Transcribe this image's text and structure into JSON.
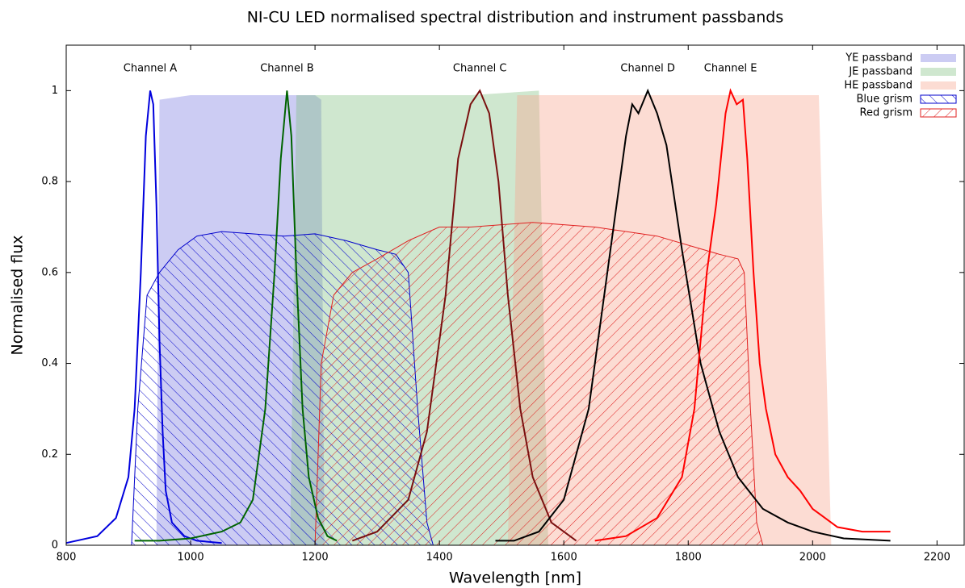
{
  "chart_data": {
    "type": "line",
    "title": "NI-CU LED normalised spectral distribution and instrument passbands",
    "x_label": "Wavelength [nm]",
    "y_label": "Normalised flux",
    "xlim": [
      800,
      2245
    ],
    "ylim": [
      0,
      1.1
    ],
    "xticks": [
      800,
      1000,
      1200,
      1400,
      1600,
      1800,
      2000,
      2200
    ],
    "yticks": [
      0,
      0.2,
      0.4,
      0.6,
      0.8,
      1
    ],
    "legend": "upper right",
    "series": [
      {
        "name": "YE passband",
        "style": "area",
        "color": "#8080e0",
        "opacity": 0.4,
        "x": [
          945,
          950,
          1000,
          1100,
          1200,
          1210,
          1215
        ],
        "values": [
          0,
          0.98,
          0.99,
          0.99,
          0.99,
          0.98,
          0
        ]
      },
      {
        "name": "JE passband",
        "style": "area",
        "color": "#80c080",
        "opacity": 0.38,
        "x": [
          1160,
          1170,
          1300,
          1450,
          1560,
          1575
        ],
        "values": [
          0,
          0.99,
          0.99,
          0.99,
          1.0,
          0
        ]
      },
      {
        "name": "HE passband",
        "style": "area",
        "color": "#f8a890",
        "opacity": 0.4,
        "x": [
          1510,
          1525,
          1700,
          1900,
          2010,
          2030
        ],
        "values": [
          0,
          0.99,
          0.99,
          0.99,
          0.99,
          0
        ]
      },
      {
        "name": "Blue grism",
        "style": "hatch",
        "hatch": "back",
        "color": "#0000cc",
        "x": [
          905,
          915,
          930,
          950,
          980,
          1010,
          1050,
          1150,
          1200,
          1250,
          1300,
          1330,
          1350,
          1365,
          1380,
          1390
        ],
        "values": [
          0,
          0.3,
          0.55,
          0.6,
          0.65,
          0.68,
          0.69,
          0.68,
          0.685,
          0.67,
          0.65,
          0.64,
          0.6,
          0.3,
          0.05,
          0
        ]
      },
      {
        "name": "Red grism",
        "style": "hatch",
        "hatch": "forward",
        "color": "#e02020",
        "x": [
          1200,
          1210,
          1230,
          1260,
          1300,
          1350,
          1400,
          1450,
          1550,
          1650,
          1750,
          1850,
          1880,
          1890,
          1900,
          1910,
          1920
        ],
        "values": [
          0,
          0.4,
          0.55,
          0.6,
          0.63,
          0.67,
          0.7,
          0.7,
          0.71,
          0.7,
          0.68,
          0.64,
          0.63,
          0.6,
          0.3,
          0.05,
          0
        ]
      },
      {
        "name": "Channel A",
        "style": "line",
        "color": "#0000dd",
        "x": [
          800,
          850,
          880,
          900,
          910,
          920,
          928,
          935,
          940,
          945,
          950,
          955,
          960,
          970,
          990,
          1010,
          1050
        ],
        "values": [
          0.005,
          0.02,
          0.06,
          0.15,
          0.3,
          0.6,
          0.9,
          1.0,
          0.97,
          0.75,
          0.45,
          0.25,
          0.12,
          0.05,
          0.02,
          0.01,
          0.005
        ]
      },
      {
        "name": "Channel B",
        "style": "line",
        "color": "#006400",
        "x": [
          910,
          950,
          1000,
          1050,
          1080,
          1100,
          1120,
          1135,
          1145,
          1155,
          1162,
          1170,
          1180,
          1190,
          1205,
          1220,
          1235
        ],
        "values": [
          0.01,
          0.01,
          0.015,
          0.03,
          0.05,
          0.1,
          0.3,
          0.6,
          0.85,
          1.0,
          0.9,
          0.6,
          0.3,
          0.15,
          0.06,
          0.02,
          0.01
        ]
      },
      {
        "name": "Channel C",
        "style": "line",
        "color": "#7a1010",
        "x": [
          1260,
          1300,
          1350,
          1380,
          1410,
          1430,
          1450,
          1465,
          1480,
          1495,
          1510,
          1530,
          1550,
          1580,
          1620
        ],
        "values": [
          0.01,
          0.03,
          0.1,
          0.25,
          0.55,
          0.85,
          0.97,
          1.0,
          0.95,
          0.8,
          0.55,
          0.3,
          0.15,
          0.05,
          0.01
        ]
      },
      {
        "name": "Channel D",
        "style": "line",
        "color": "#000000",
        "x": [
          1490,
          1520,
          1560,
          1600,
          1640,
          1670,
          1700,
          1710,
          1720,
          1735,
          1750,
          1765,
          1790,
          1820,
          1850,
          1880,
          1920,
          1960,
          2000,
          2050,
          2125
        ],
        "values": [
          0.01,
          0.01,
          0.03,
          0.1,
          0.3,
          0.6,
          0.9,
          0.97,
          0.95,
          1.0,
          0.95,
          0.88,
          0.65,
          0.4,
          0.25,
          0.15,
          0.08,
          0.05,
          0.03,
          0.015,
          0.01
        ]
      },
      {
        "name": "Channel E",
        "style": "line",
        "color": "#ff0000",
        "x": [
          1650,
          1700,
          1750,
          1790,
          1810,
          1830,
          1845,
          1860,
          1868,
          1878,
          1888,
          1895,
          1905,
          1915,
          1925,
          1940,
          1960,
          1980,
          2000,
          2040,
          2080,
          2125
        ],
        "values": [
          0.01,
          0.02,
          0.06,
          0.15,
          0.3,
          0.6,
          0.75,
          0.95,
          1.0,
          0.97,
          0.98,
          0.85,
          0.6,
          0.4,
          0.3,
          0.2,
          0.15,
          0.12,
          0.08,
          0.04,
          0.03,
          0.03
        ]
      }
    ]
  }
}
